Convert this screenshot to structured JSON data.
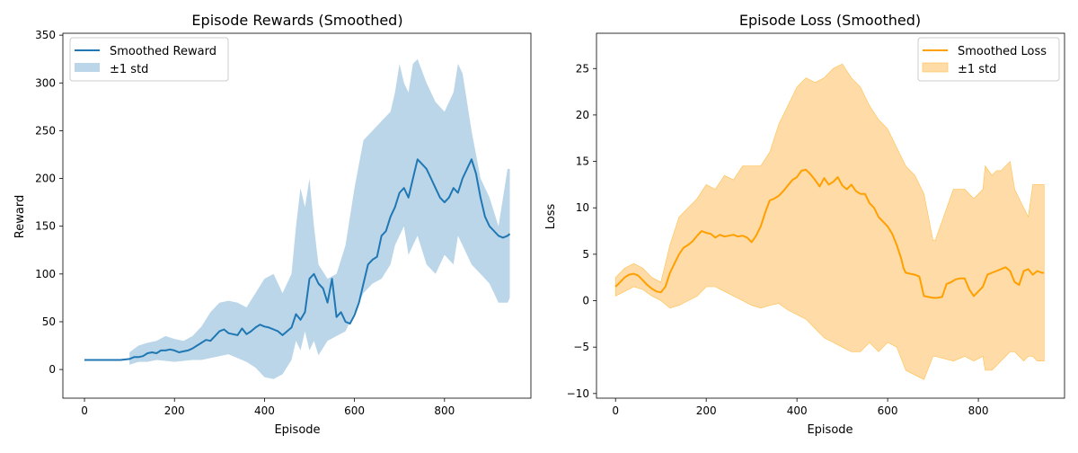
{
  "chart_data": [
    {
      "type": "line",
      "title": "Episode Rewards (Smoothed)",
      "xlabel": "Episode",
      "ylabel": "Reward",
      "xlim": [
        -48,
        992
      ],
      "ylim": [
        -30,
        352
      ],
      "xticks": [
        0,
        200,
        400,
        600,
        800
      ],
      "yticks": [
        0,
        50,
        100,
        150,
        200,
        250,
        300,
        350
      ],
      "grid": false,
      "legend_position": "upper-left",
      "colors": {
        "line": "#1f77b4",
        "band": "#1f77b4"
      },
      "series": [
        {
          "name": "Smoothed Reward",
          "kind": "line",
          "x": [
            0,
            20,
            40,
            60,
            80,
            100,
            110,
            120,
            130,
            140,
            150,
            160,
            170,
            180,
            190,
            200,
            210,
            220,
            230,
            240,
            250,
            260,
            270,
            280,
            290,
            300,
            310,
            320,
            330,
            340,
            350,
            360,
            370,
            380,
            390,
            400,
            410,
            420,
            430,
            440,
            450,
            460,
            470,
            480,
            490,
            500,
            510,
            520,
            530,
            540,
            550,
            560,
            570,
            580,
            590,
            600,
            610,
            620,
            630,
            640,
            650,
            660,
            670,
            680,
            690,
            700,
            710,
            720,
            730,
            740,
            750,
            760,
            770,
            780,
            790,
            800,
            810,
            820,
            830,
            840,
            850,
            860,
            870,
            880,
            890,
            900,
            910,
            920,
            930,
            940,
            945
          ],
          "y": [
            10,
            10,
            10,
            10,
            10,
            11,
            13,
            13,
            14,
            17,
            18,
            17,
            20,
            20,
            21,
            20,
            18,
            19,
            20,
            22,
            25,
            28,
            31,
            30,
            35,
            40,
            42,
            38,
            37,
            36,
            43,
            37,
            40,
            44,
            47,
            45,
            44,
            42,
            40,
            36,
            40,
            44,
            58,
            52,
            60,
            95,
            100,
            90,
            85,
            70,
            95,
            55,
            60,
            50,
            48,
            57,
            70,
            90,
            110,
            115,
            118,
            140,
            145,
            160,
            170,
            185,
            190,
            180,
            200,
            220,
            215,
            210,
            200,
            190,
            180,
            175,
            180,
            190,
            185,
            200,
            210,
            220,
            205,
            180,
            160,
            150,
            145,
            140,
            138,
            140,
            142
          ]
        },
        {
          "name": "±1 std",
          "kind": "band",
          "x": [
            100,
            120,
            140,
            160,
            180,
            200,
            220,
            240,
            260,
            280,
            300,
            320,
            340,
            360,
            380,
            400,
            420,
            440,
            460,
            470,
            480,
            490,
            500,
            510,
            520,
            540,
            560,
            580,
            600,
            620,
            640,
            660,
            680,
            690,
            700,
            710,
            720,
            730,
            740,
            760,
            780,
            800,
            820,
            830,
            840,
            860,
            880,
            900,
            920,
            940,
            945
          ],
          "lower": [
            5,
            8,
            8,
            10,
            9,
            8,
            9,
            10,
            10,
            12,
            14,
            16,
            12,
            8,
            2,
            -8,
            -10,
            -5,
            10,
            30,
            20,
            40,
            20,
            30,
            15,
            30,
            35,
            40,
            60,
            80,
            90,
            95,
            110,
            130,
            140,
            150,
            120,
            130,
            140,
            110,
            100,
            120,
            110,
            140,
            130,
            110,
            100,
            90,
            70,
            70,
            75
          ],
          "upper": [
            18,
            25,
            28,
            30,
            35,
            32,
            30,
            35,
            45,
            60,
            70,
            72,
            70,
            65,
            80,
            95,
            100,
            80,
            100,
            150,
            190,
            170,
            200,
            150,
            110,
            95,
            100,
            130,
            190,
            240,
            250,
            260,
            270,
            290,
            320,
            300,
            290,
            320,
            325,
            300,
            280,
            270,
            290,
            320,
            310,
            250,
            200,
            180,
            150,
            210,
            210
          ]
        }
      ]
    },
    {
      "type": "line",
      "title": "Episode Loss (Smoothed)",
      "xlabel": "Episode",
      "ylabel": "Loss",
      "xlim": [
        -42,
        990
      ],
      "ylim": [
        -10.5,
        28.8
      ],
      "xticks": [
        0,
        200,
        400,
        600,
        800
      ],
      "yticks": [
        -10,
        -5,
        0,
        5,
        10,
        15,
        20,
        25
      ],
      "grid": false,
      "legend_position": "upper-right",
      "colors": {
        "line": "#ff9f00",
        "band": "#ffd089"
      },
      "series": [
        {
          "name": "Smoothed Loss",
          "kind": "line",
          "x": [
            0,
            10,
            20,
            30,
            40,
            50,
            60,
            70,
            80,
            90,
            100,
            110,
            120,
            130,
            140,
            150,
            160,
            170,
            180,
            190,
            200,
            210,
            220,
            230,
            240,
            250,
            260,
            270,
            280,
            290,
            300,
            310,
            320,
            330,
            340,
            350,
            360,
            370,
            380,
            390,
            400,
            410,
            420,
            430,
            440,
            450,
            460,
            470,
            480,
            490,
            500,
            510,
            520,
            530,
            540,
            550,
            560,
            570,
            580,
            590,
            600,
            610,
            620,
            630,
            635,
            640,
            650,
            660,
            670,
            680,
            690,
            700,
            710,
            720,
            730,
            740,
            750,
            760,
            770,
            780,
            790,
            800,
            810,
            820,
            830,
            840,
            850,
            860,
            870,
            880,
            890,
            900,
            910,
            920,
            930,
            940,
            945
          ],
          "y": [
            1.5,
            2.0,
            2.5,
            2.8,
            2.9,
            2.7,
            2.2,
            1.7,
            1.3,
            1.0,
            0.9,
            1.5,
            3.0,
            4.0,
            5.0,
            5.7,
            6.0,
            6.4,
            7.0,
            7.5,
            7.3,
            7.2,
            6.8,
            7.1,
            6.9,
            7.0,
            7.1,
            6.9,
            7.0,
            6.8,
            6.3,
            7.0,
            8.0,
            9.5,
            10.8,
            11.0,
            11.3,
            11.8,
            12.4,
            13.0,
            13.3,
            14.0,
            14.1,
            13.6,
            13.0,
            12.3,
            13.2,
            12.5,
            12.8,
            13.3,
            12.4,
            12.0,
            12.5,
            11.8,
            11.5,
            11.5,
            10.5,
            10.0,
            9.0,
            8.5,
            8.0,
            7.2,
            6.0,
            4.5,
            3.5,
            3.0,
            2.9,
            2.8,
            2.6,
            0.5,
            0.4,
            0.3,
            0.3,
            0.4,
            1.8,
            2.0,
            2.3,
            2.4,
            2.4,
            1.2,
            0.5,
            1.0,
            1.5,
            2.8,
            3.0,
            3.2,
            3.4,
            3.6,
            3.2,
            2.0,
            1.7,
            3.2,
            3.4,
            2.8,
            3.2,
            3.0,
            3.0
          ]
        },
        {
          "name": "±1 std",
          "kind": "band",
          "x": [
            0,
            20,
            40,
            60,
            80,
            100,
            120,
            140,
            160,
            180,
            200,
            220,
            240,
            260,
            280,
            300,
            320,
            340,
            360,
            380,
            400,
            420,
            440,
            460,
            480,
            500,
            520,
            540,
            560,
            580,
            600,
            620,
            640,
            660,
            680,
            700,
            705,
            745,
            770,
            790,
            810,
            815,
            830,
            840,
            850,
            860,
            870,
            880,
            890,
            900,
            910,
            920,
            930,
            940,
            945
          ],
          "lower": [
            0.5,
            1.0,
            1.5,
            1.2,
            0.5,
            0.0,
            -0.8,
            -0.5,
            0.0,
            0.5,
            1.5,
            1.5,
            1.0,
            0.5,
            0.0,
            -0.5,
            -0.8,
            -0.5,
            -0.3,
            -1.0,
            -1.5,
            -2.0,
            -3.0,
            -4.0,
            -4.5,
            -5.0,
            -5.5,
            -5.5,
            -4.5,
            -5.5,
            -4.5,
            -5.0,
            -7.5,
            -8.0,
            -8.5,
            -6.0,
            -6.0,
            -6.5,
            -6.0,
            -6.5,
            -6.0,
            -7.5,
            -7.5,
            -7.0,
            -6.5,
            -6.0,
            -5.5,
            -5.5,
            -6.0,
            -6.5,
            -6.0,
            -6.0,
            -6.5,
            -6.5,
            -6.5
          ],
          "upper": [
            2.5,
            3.5,
            4.0,
            3.5,
            2.5,
            2.0,
            6.0,
            9.0,
            10.0,
            11.0,
            12.5,
            12.0,
            13.5,
            13.0,
            14.5,
            14.5,
            14.5,
            16.0,
            19.0,
            21.0,
            23.0,
            24.0,
            23.5,
            24.0,
            25.0,
            25.5,
            24.0,
            23.0,
            21.0,
            19.5,
            18.5,
            16.5,
            14.5,
            13.5,
            11.5,
            6.5,
            6.5,
            12.0,
            12.0,
            11.0,
            12.0,
            14.5,
            13.5,
            14.0,
            14.0,
            14.5,
            15.0,
            12.0,
            11.0,
            10.0,
            9.0,
            12.5,
            12.5,
            12.5,
            12.5
          ]
        }
      ]
    }
  ]
}
